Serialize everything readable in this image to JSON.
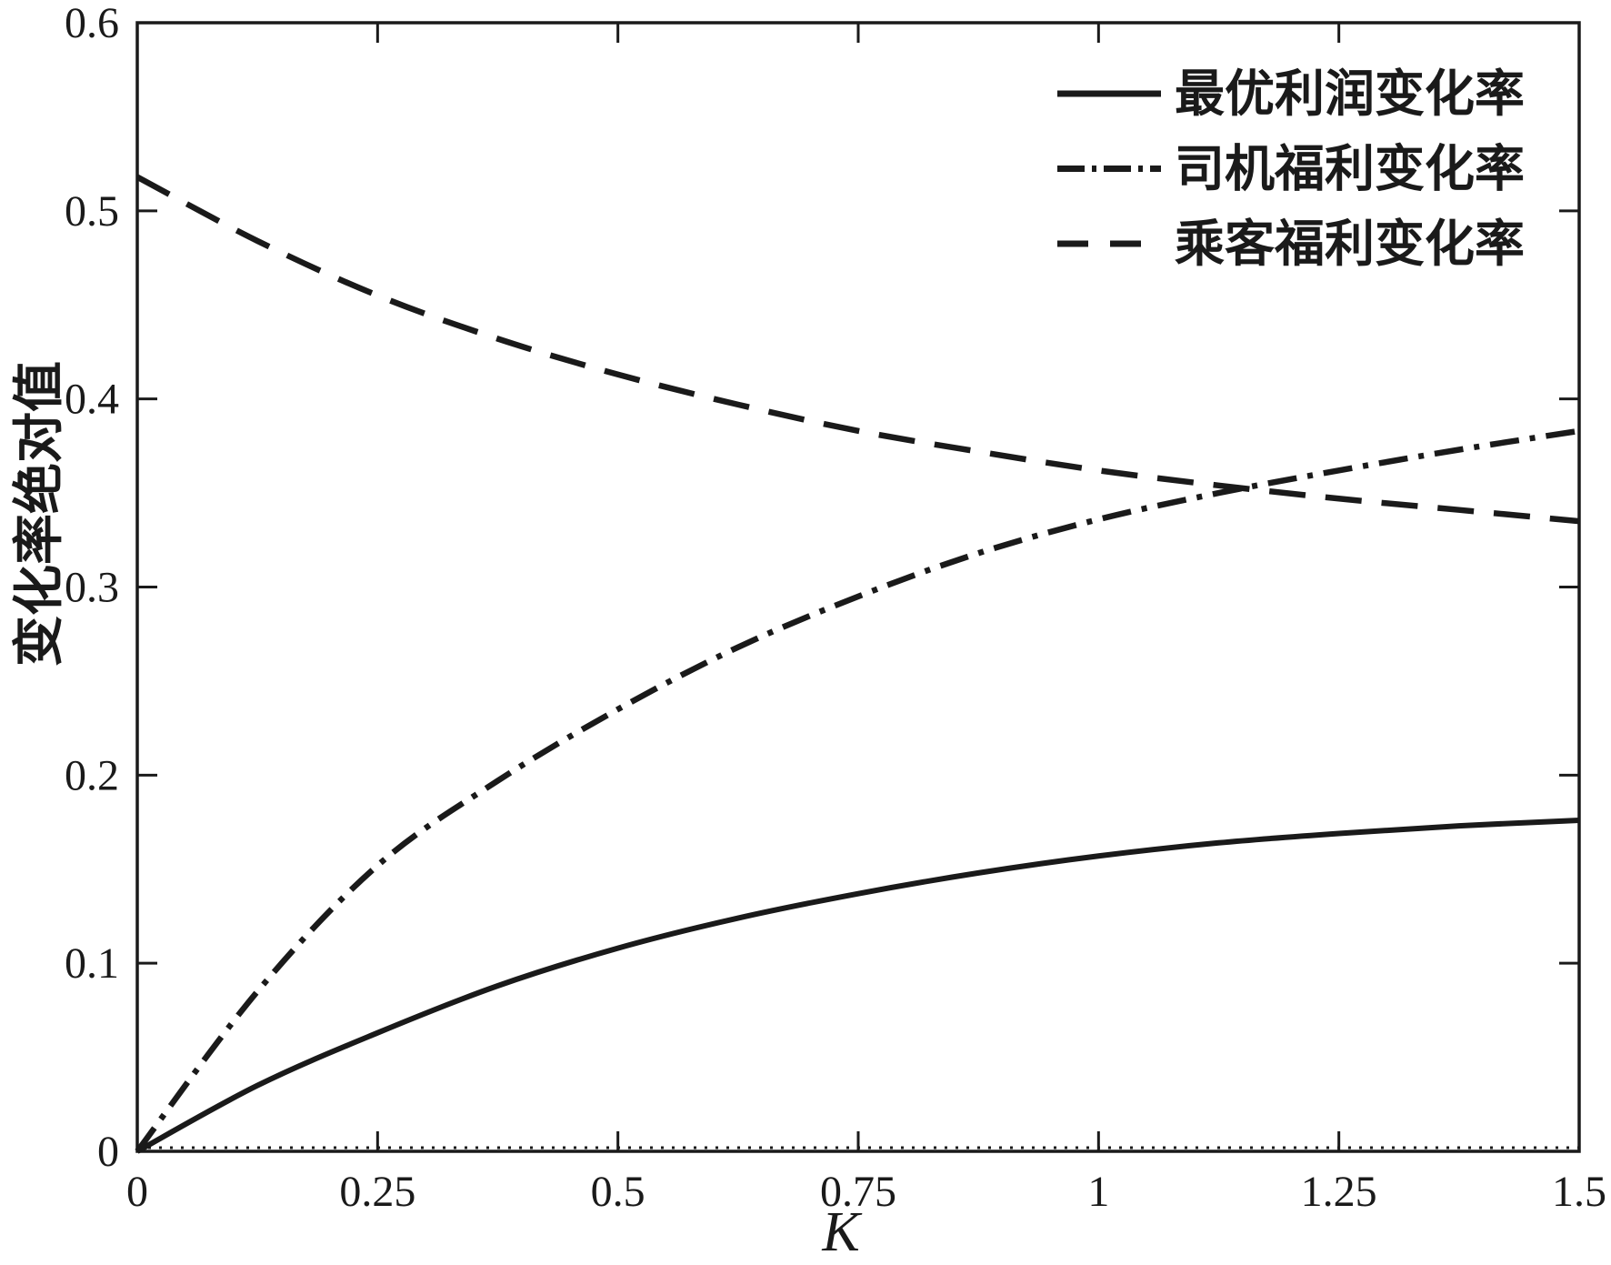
{
  "figure": {
    "background": "#ffffff",
    "axis_color": "#1a1a1a",
    "curve_color": "#1a1a1a"
  },
  "chart_data": {
    "type": "line",
    "title": "",
    "xlabel": "K",
    "ylabel": "变化率绝对值",
    "xlim": [
      0,
      1.5
    ],
    "ylim": [
      0,
      0.6
    ],
    "x_ticks": [
      0,
      0.25,
      0.5,
      0.75,
      1,
      1.25,
      1.5
    ],
    "x_tick_labels": [
      "0",
      "0.25",
      "0.5",
      "0.75",
      "1",
      "1.25",
      "1.5"
    ],
    "y_ticks": [
      0,
      0.1,
      0.2,
      0.3,
      0.4,
      0.5,
      0.6
    ],
    "y_tick_labels": [
      "0",
      "0.1",
      "0.2",
      "0.3",
      "0.4",
      "0.5",
      "0.6"
    ],
    "grid": false,
    "legend_position": "upper-right",
    "x": [
      0,
      0.125,
      0.25,
      0.375,
      0.5,
      0.625,
      0.75,
      0.875,
      1.0,
      1.125,
      1.25,
      1.375,
      1.5
    ],
    "series": [
      {
        "name": "最优利润变化率",
        "style": "solid",
        "color": "#1a1a1a",
        "values": [
          0,
          0.035,
          0.063,
          0.088,
          0.108,
          0.124,
          0.137,
          0.148,
          0.157,
          0.164,
          0.169,
          0.173,
          0.176
        ]
      },
      {
        "name": "司机福利变化率",
        "style": "dash-dot",
        "color": "#1a1a1a",
        "values": [
          0,
          0.085,
          0.152,
          0.197,
          0.235,
          0.268,
          0.295,
          0.318,
          0.336,
          0.35,
          0.362,
          0.373,
          0.383
        ]
      },
      {
        "name": "乘客福利变化率",
        "style": "dashed",
        "color": "#1a1a1a",
        "values": [
          0.518,
          0.484,
          0.455,
          0.432,
          0.413,
          0.397,
          0.383,
          0.372,
          0.362,
          0.354,
          0.347,
          0.341,
          0.335
        ]
      }
    ],
    "baseline": {
      "y": 0,
      "style": "dotted"
    },
    "annotations": {
      "crossing_point": {
        "x": 1.15,
        "y": 0.352
      }
    }
  }
}
